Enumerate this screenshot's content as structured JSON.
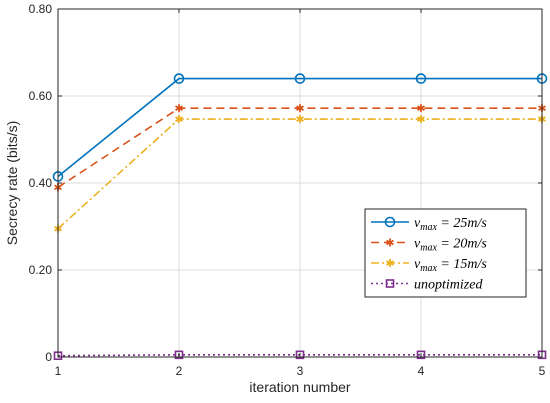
{
  "chart_data": {
    "type": "line",
    "x": [
      1,
      2,
      3,
      4,
      5
    ],
    "xlabel": "iteration number",
    "ylabel": "Secrecy rate (bits/s)",
    "xlim": [
      1,
      5
    ],
    "ylim": [
      0,
      0.8
    ],
    "xticks": [
      "1",
      "2",
      "3",
      "4",
      "5"
    ],
    "yticks": [
      "0",
      "0.20",
      "0.40",
      "0.60",
      "0.80"
    ],
    "grid": true,
    "legend_position": "center-right",
    "series": [
      {
        "name": "v_max = 25m/s",
        "legend_var": "v",
        "legend_sub": "max",
        "legend_rest": " = 25m/s",
        "values": [
          0.415,
          0.64,
          0.64,
          0.64,
          0.64
        ],
        "color": "#0072BD",
        "dash": "",
        "marker": "circle"
      },
      {
        "name": "v_max = 20m/s",
        "legend_var": "v",
        "legend_sub": "max",
        "legend_rest": " = 20m/s",
        "values": [
          0.39,
          0.572,
          0.572,
          0.572,
          0.572
        ],
        "color": "#D95319",
        "dash": "8,5",
        "marker": "asterisk"
      },
      {
        "name": "v_max = 15m/s",
        "legend_var": "v",
        "legend_sub": "max",
        "legend_rest": " = 15m/s",
        "values": [
          0.295,
          0.547,
          0.547,
          0.547,
          0.547
        ],
        "color": "#EDB120",
        "dash": "8,3,2,3",
        "marker": "asterisk"
      },
      {
        "name": "unoptimized",
        "legend_var": "unoptimized",
        "legend_sub": "",
        "legend_rest": "",
        "values": [
          0.003,
          0.005,
          0.005,
          0.005,
          0.005
        ],
        "color": "#7E2F8E",
        "dash": "2,3",
        "marker": "square"
      }
    ]
  }
}
